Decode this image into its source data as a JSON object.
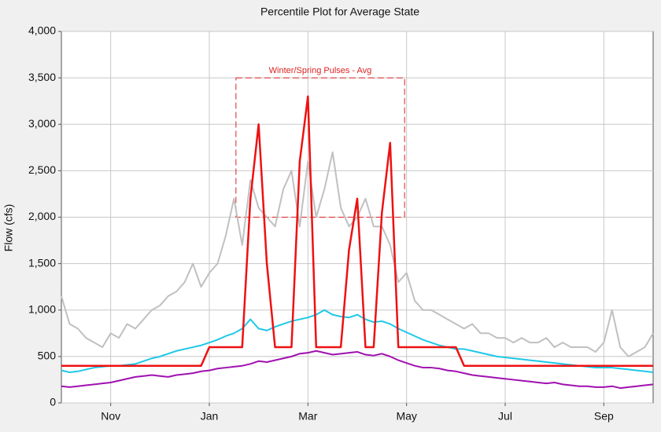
{
  "chart_data": {
    "type": "line",
    "title": "Percentile Plot for Average State",
    "ylabel": "Flow (cfs)",
    "categories": [
      null,
      null,
      null,
      null,
      null,
      null,
      "Nov",
      null,
      null,
      null,
      null,
      null,
      null,
      null,
      null,
      null,
      null,
      null,
      "Jan",
      null,
      null,
      null,
      null,
      null,
      null,
      null,
      null,
      null,
      null,
      null,
      "Mar",
      null,
      null,
      null,
      null,
      null,
      null,
      null,
      null,
      null,
      null,
      null,
      "May",
      null,
      null,
      null,
      null,
      null,
      null,
      null,
      null,
      null,
      null,
      null,
      "Jul",
      null,
      null,
      null,
      null,
      null,
      null,
      null,
      null,
      null,
      null,
      null,
      "Sep",
      null,
      null,
      null,
      null,
      null,
      null
    ],
    "series": [
      {
        "color": "#c0c0c0",
        "width": 2,
        "values": [
          1150,
          850,
          800,
          700,
          650,
          600,
          750,
          700,
          850,
          800,
          900,
          1000,
          1050,
          1150,
          1200,
          1300,
          1500,
          1250,
          1400,
          1500,
          1800,
          2200,
          1700,
          2400,
          2100,
          2000,
          1900,
          2300,
          2500,
          1900,
          2600,
          2000,
          2300,
          2700,
          2100,
          1900,
          2000,
          2200,
          1900,
          1900,
          1700,
          1300,
          1400,
          1100,
          1000,
          1000,
          950,
          900,
          850,
          800,
          850,
          750,
          750,
          700,
          700,
          650,
          700,
          650,
          650,
          700,
          600,
          650,
          600,
          600,
          600,
          550,
          650,
          1000,
          600,
          500,
          550,
          600,
          750
        ]
      },
      {
        "color": "#1ec8e8",
        "width": 2,
        "values": [
          350,
          330,
          340,
          360,
          380,
          390,
          400,
          400,
          410,
          420,
          450,
          480,
          500,
          530,
          560,
          580,
          600,
          620,
          650,
          680,
          720,
          750,
          800,
          900,
          800,
          780,
          820,
          850,
          880,
          900,
          920,
          950,
          1000,
          950,
          930,
          920,
          950,
          900,
          870,
          880,
          850,
          800,
          760,
          720,
          680,
          650,
          620,
          600,
          580,
          580,
          560,
          540,
          520,
          500,
          490,
          480,
          470,
          460,
          450,
          440,
          430,
          420,
          410,
          400,
          390,
          380,
          380,
          380,
          370,
          360,
          350,
          340,
          330
        ]
      },
      {
        "color": "#a010b0",
        "width": 2,
        "values": [
          180,
          170,
          180,
          190,
          200,
          210,
          220,
          240,
          260,
          280,
          290,
          300,
          290,
          280,
          300,
          310,
          320,
          340,
          350,
          370,
          380,
          390,
          400,
          420,
          450,
          440,
          460,
          480,
          500,
          530,
          540,
          560,
          540,
          520,
          530,
          540,
          550,
          520,
          510,
          530,
          500,
          460,
          430,
          400,
          380,
          380,
          370,
          350,
          340,
          320,
          300,
          290,
          280,
          270,
          260,
          250,
          240,
          230,
          220,
          210,
          220,
          200,
          190,
          180,
          180,
          170,
          170,
          180,
          160,
          170,
          180,
          190,
          200
        ]
      },
      {
        "color": "#ee1111",
        "width": 2.5,
        "values": [
          400,
          400,
          400,
          400,
          400,
          400,
          400,
          400,
          400,
          400,
          400,
          400,
          400,
          400,
          400,
          400,
          400,
          400,
          600,
          600,
          600,
          600,
          600,
          2200,
          3000,
          1500,
          600,
          600,
          600,
          2600,
          3300,
          600,
          600,
          600,
          600,
          1650,
          2200,
          600,
          600,
          2050,
          2800,
          600,
          600,
          600,
          600,
          600,
          600,
          600,
          600,
          400,
          400,
          400,
          400,
          400,
          400,
          400,
          400,
          400,
          400,
          400,
          400,
          400,
          400,
          400,
          400,
          400,
          400,
          400,
          400,
          400,
          400,
          400,
          400
        ]
      }
    ],
    "annotation": {
      "text": "Winter/Spring Pulses - Avg",
      "color": "#dd2222",
      "y": [
        2000,
        3500
      ]
    },
    "ylim": [
      0,
      4000
    ],
    "yticks": [
      0,
      {
        "value": 500,
        "label": "500"
      },
      {
        "value": 1000,
        "label": "1,000"
      },
      {
        "value": 1500,
        "label": "1,500"
      },
      {
        "value": 2000,
        "label": "2,000"
      },
      {
        "value": 2500,
        "label": "2,500"
      },
      {
        "value": 3000,
        "label": "3,000"
      },
      {
        "value": 3500,
        "label": "3,500"
      },
      {
        "value": 4000,
        "label": "4,000"
      }
    ],
    "grid": true
  }
}
